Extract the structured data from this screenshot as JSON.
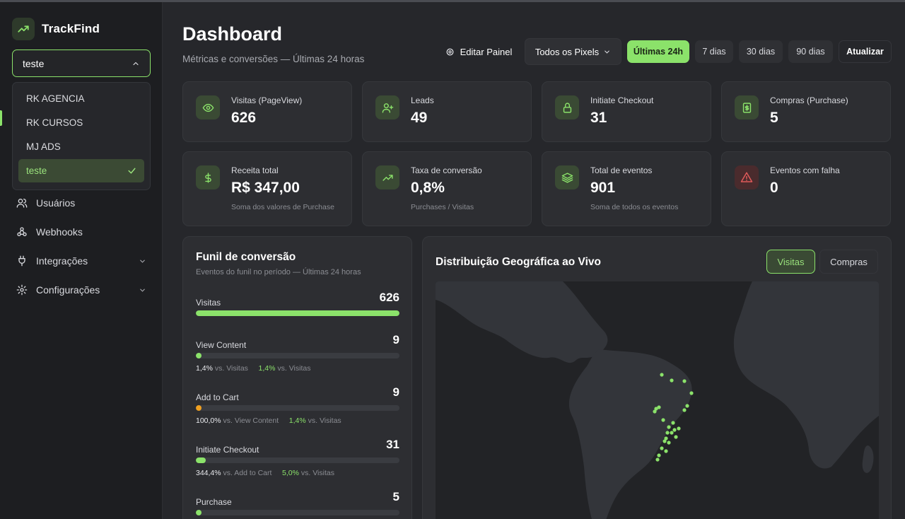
{
  "brand": {
    "name": "TrackFind"
  },
  "project_select": {
    "value": "teste",
    "options": [
      "RK AGENCIA",
      "RK CURSOS",
      "MJ ADS",
      "teste"
    ]
  },
  "nav": [
    {
      "label": "Usuários"
    },
    {
      "label": "Webhooks"
    },
    {
      "label": "Integrações"
    },
    {
      "label": "Configurações"
    }
  ],
  "header": {
    "title": "Dashboard",
    "subtitle": "Métricas e conversões — Últimas 24 horas",
    "edit_label": "Editar Painel",
    "pixels_label": "Todos os Pixels",
    "ranges": [
      "Últimas 24h",
      "7 dias",
      "30 dias",
      "90 dias"
    ],
    "refresh_label": "Atualizar"
  },
  "stats": [
    {
      "label": "Visitas (PageView)",
      "value": "626",
      "sub": "",
      "icon": "eye-icon"
    },
    {
      "label": "Leads",
      "value": "49",
      "sub": "",
      "icon": "user-plus-icon"
    },
    {
      "label": "Initiate Checkout",
      "value": "31",
      "sub": "",
      "icon": "lock-icon"
    },
    {
      "label": "Compras (Purchase)",
      "value": "5",
      "sub": "",
      "icon": "receipt-icon"
    },
    {
      "label": "Receita total",
      "value": "R$ 347,00",
      "sub": "Soma dos valores de Purchase",
      "icon": "dollar-icon"
    },
    {
      "label": "Taxa de conversão",
      "value": "0,8%",
      "sub": "Purchases / Visitas",
      "icon": "trend-icon"
    },
    {
      "label": "Total de eventos",
      "value": "901",
      "sub": "Soma de todos os eventos",
      "icon": "layers-icon"
    },
    {
      "label": "Eventos com falha",
      "value": "0",
      "sub": "",
      "icon": "alert-icon"
    }
  ],
  "funnel": {
    "title": "Funil de conversão",
    "subtitle": "Eventos do funil no período — Últimas 24 horas",
    "steps": [
      {
        "name": "Visitas",
        "value": "626",
        "fill": 1.0,
        "color": "#8be26a",
        "m1v": "",
        "m1t": "",
        "m2v": "",
        "m2t": ""
      },
      {
        "name": "View Content",
        "value": "9",
        "fill": 0.02,
        "color": "#8be26a",
        "m1v": "1,4%",
        "m1t": "vs. Visitas",
        "m2v": "1,4%",
        "m2t": "vs. Visitas"
      },
      {
        "name": "Add to Cart",
        "value": "9",
        "fill": 0.02,
        "color": "#f0a020",
        "m1v": "100,0%",
        "m1t": "vs. View Content",
        "m2v": "1,4%",
        "m2t": "vs. Visitas"
      },
      {
        "name": "Initiate Checkout",
        "value": "31",
        "fill": 0.05,
        "color": "#8be26a",
        "m1v": "344,4%",
        "m1t": "vs. Add to Cart",
        "m2v": "5,0%",
        "m2t": "vs. Visitas"
      },
      {
        "name": "Purchase",
        "value": "5",
        "fill": 0.02,
        "color": "#8be26a",
        "m1v": "",
        "m1t": "",
        "m2v": "",
        "m2t": ""
      }
    ]
  },
  "geo": {
    "title": "Distribuição Geográfica ao Vivo",
    "tabs": [
      "Visitas",
      "Compras"
    ],
    "dot_color": "#8be26a"
  },
  "colors": {
    "accent": "#8be26a",
    "background": "#26272b",
    "card": "#2d2e32",
    "sidebar": "#1d1e21",
    "danger": "#e05a5a"
  }
}
